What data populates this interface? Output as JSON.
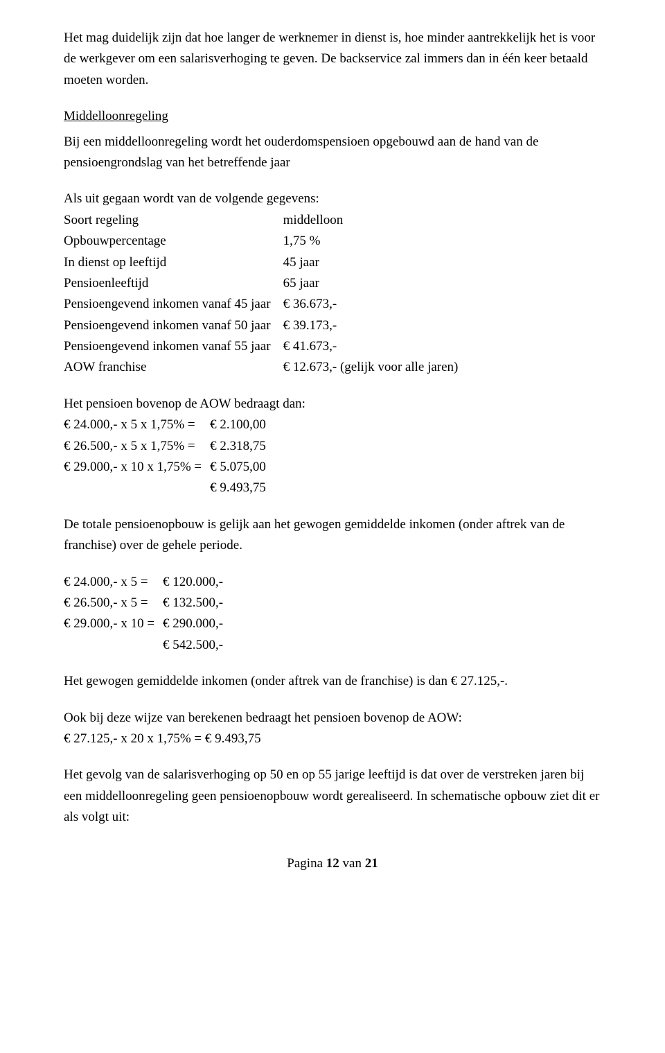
{
  "intro": {
    "p1": "Het mag duidelijk zijn dat hoe langer de werknemer in dienst is, hoe minder aantrekkelijk het is voor de werkgever om een salarisverhoging te geven. De backservice zal immers dan in één keer betaald moeten worden."
  },
  "section": {
    "heading": "Middelloonregeling",
    "p1": "Bij een middelloonregeling wordt het ouderdomspensioen opgebouwd aan de hand van de pensioengrondslag van het betreffende jaar",
    "p2": "Als uit gegaan wordt van de volgende gegevens:"
  },
  "gegevens": {
    "rows": [
      {
        "label": "Soort regeling",
        "value": "middelloon"
      },
      {
        "label": "Opbouwpercentage",
        "value": "1,75 %"
      },
      {
        "label": "In dienst op leeftijd",
        "value": "45 jaar"
      },
      {
        "label": "Pensioenleeftijd",
        "value": "65 jaar"
      },
      {
        "label": "Pensioengevend inkomen vanaf 45 jaar",
        "value": "€  36.673,-"
      },
      {
        "label": "Pensioengevend inkomen vanaf 50 jaar",
        "value": "€  39.173,-"
      },
      {
        "label": "Pensioengevend inkomen vanaf 55 jaar",
        "value": "€  41.673,-"
      },
      {
        "label": "AOW franchise",
        "value": "€  12.673,- (gelijk voor alle jaren)"
      }
    ]
  },
  "calc1": {
    "heading": "Het pensioen bovenop de AOW bedraagt dan:",
    "rows": [
      {
        "lhs": "€ 24.000,- x  5 x 1,75% =",
        "rhs": "€  2.100,00"
      },
      {
        "lhs": "€ 26.500,- x  5 x 1,75% =",
        "rhs": "€  2.318,75"
      },
      {
        "lhs": "€ 29.000,- x 10 x 1,75% =",
        "rhs": "€  5.075,00"
      },
      {
        "lhs": "",
        "rhs": "€  9.493,75"
      }
    ]
  },
  "mid": {
    "p1": "De totale pensioenopbouw is gelijk aan het gewogen gemiddelde inkomen (onder aftrek van de franchise) over  de gehele periode."
  },
  "calc2": {
    "rows": [
      {
        "lhs": "€ 24.000,-  x  5 =",
        "rhs": "€  120.000,-"
      },
      {
        "lhs": "€ 26.500,-  x  5 =",
        "rhs": "€  132.500,-"
      },
      {
        "lhs": "€ 29.000,-  x 10 =",
        "rhs": "€  290.000,-"
      },
      {
        "lhs": "",
        "rhs": "€  542.500,-"
      }
    ]
  },
  "tail": {
    "p1": "Het gewogen gemiddelde inkomen (onder aftrek van de franchise) is dan € 27.125,-.",
    "p2": "Ook bij deze wijze van berekenen bedraagt het pensioen bovenop de AOW:",
    "p3": "€ 27.125,- x 20 x 1,75% = € 9.493,75",
    "p4": "Het gevolg van de salarisverhoging op 50 en op 55 jarige leeftijd is dat over de verstreken jaren bij een middelloonregeling geen pensioenopbouw wordt gerealiseerd. In schematische opbouw ziet dit er als volgt uit:"
  },
  "footer": {
    "text": "Pagina 12 van 21"
  }
}
